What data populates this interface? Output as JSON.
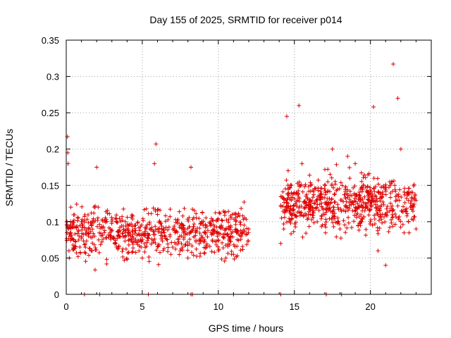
{
  "chart_data": {
    "type": "scatter",
    "title": "Day 155 of 2025, SRMTID for receiver p014",
    "xlabel": "GPS time / hours",
    "ylabel": "SRMTID / TECUs",
    "xlim": [
      0,
      24
    ],
    "ylim": [
      0,
      0.35
    ],
    "xticks": [
      0,
      5,
      10,
      15,
      20
    ],
    "yticks": [
      0,
      0.05,
      0.1,
      0.15,
      0.2,
      0.25,
      0.3,
      0.35
    ],
    "xtick_labels": [
      "0",
      "5",
      "10",
      "15",
      "20"
    ],
    "ytick_labels": [
      "0",
      "0.05",
      "0.1",
      "0.15",
      "0.2",
      "0.25",
      "0.3",
      "0.35"
    ],
    "grid": true,
    "marker": "+",
    "color": "#e00000",
    "series": [
      {
        "name": "SRMTID",
        "segments": [
          {
            "x_start": 0.0,
            "x_end": 12.0,
            "mean": 0.085,
            "spread": 0.05,
            "count": 700
          },
          {
            "x_start": 14.1,
            "x_end": 23.0,
            "mean": 0.125,
            "spread": 0.055,
            "count": 650
          }
        ],
        "x": [
          0.05,
          0.08,
          0.1,
          0.12,
          0.15,
          0.18,
          0.2,
          0.25,
          0.3,
          0.5,
          1.0,
          1.5,
          2.0,
          2.1,
          2.5,
          3.0,
          3.5,
          4.0,
          4.5,
          5.0,
          5.5,
          5.8,
          5.9,
          6.0,
          6.5,
          7.0,
          7.5,
          8.0,
          8.2,
          8.5,
          9.0,
          9.5,
          10.0,
          10.5,
          11.0,
          11.5,
          12.0,
          14.1,
          14.3,
          14.5,
          14.8,
          15.0,
          15.3,
          15.5,
          16.0,
          16.5,
          17.0,
          17.5,
          18.0,
          18.5,
          19.0,
          19.5,
          20.0,
          20.2,
          20.5,
          21.0,
          21.5,
          21.6,
          21.8,
          22.0,
          22.5,
          23.0
        ],
        "y": [
          0.1,
          0.217,
          0.195,
          0.18,
          0.09,
          0.06,
          0.05,
          0.08,
          0.12,
          0.075,
          0.1,
          0.09,
          0.175,
          0.12,
          0.085,
          0.1,
          0.08,
          0.09,
          0.095,
          0.05,
          0.09,
          0.18,
          0.207,
          0.11,
          0.08,
          0.065,
          0.06,
          0.05,
          0.175,
          0.085,
          0.095,
          0.1,
          0.06,
          0.05,
          0.055,
          0.08,
          0.09,
          0.07,
          0.09,
          0.245,
          0.15,
          0.14,
          0.26,
          0.18,
          0.13,
          0.1,
          0.11,
          0.2,
          0.09,
          0.19,
          0.18,
          0.12,
          0.1,
          0.258,
          0.06,
          0.04,
          0.317,
          0.15,
          0.27,
          0.2,
          0.1,
          0.09
        ],
        "zero_markers_x": [
          1.2,
          2.2,
          5.4,
          8.2,
          8.3,
          11.0,
          14.1,
          17.1,
          18.1
        ]
      }
    ]
  }
}
